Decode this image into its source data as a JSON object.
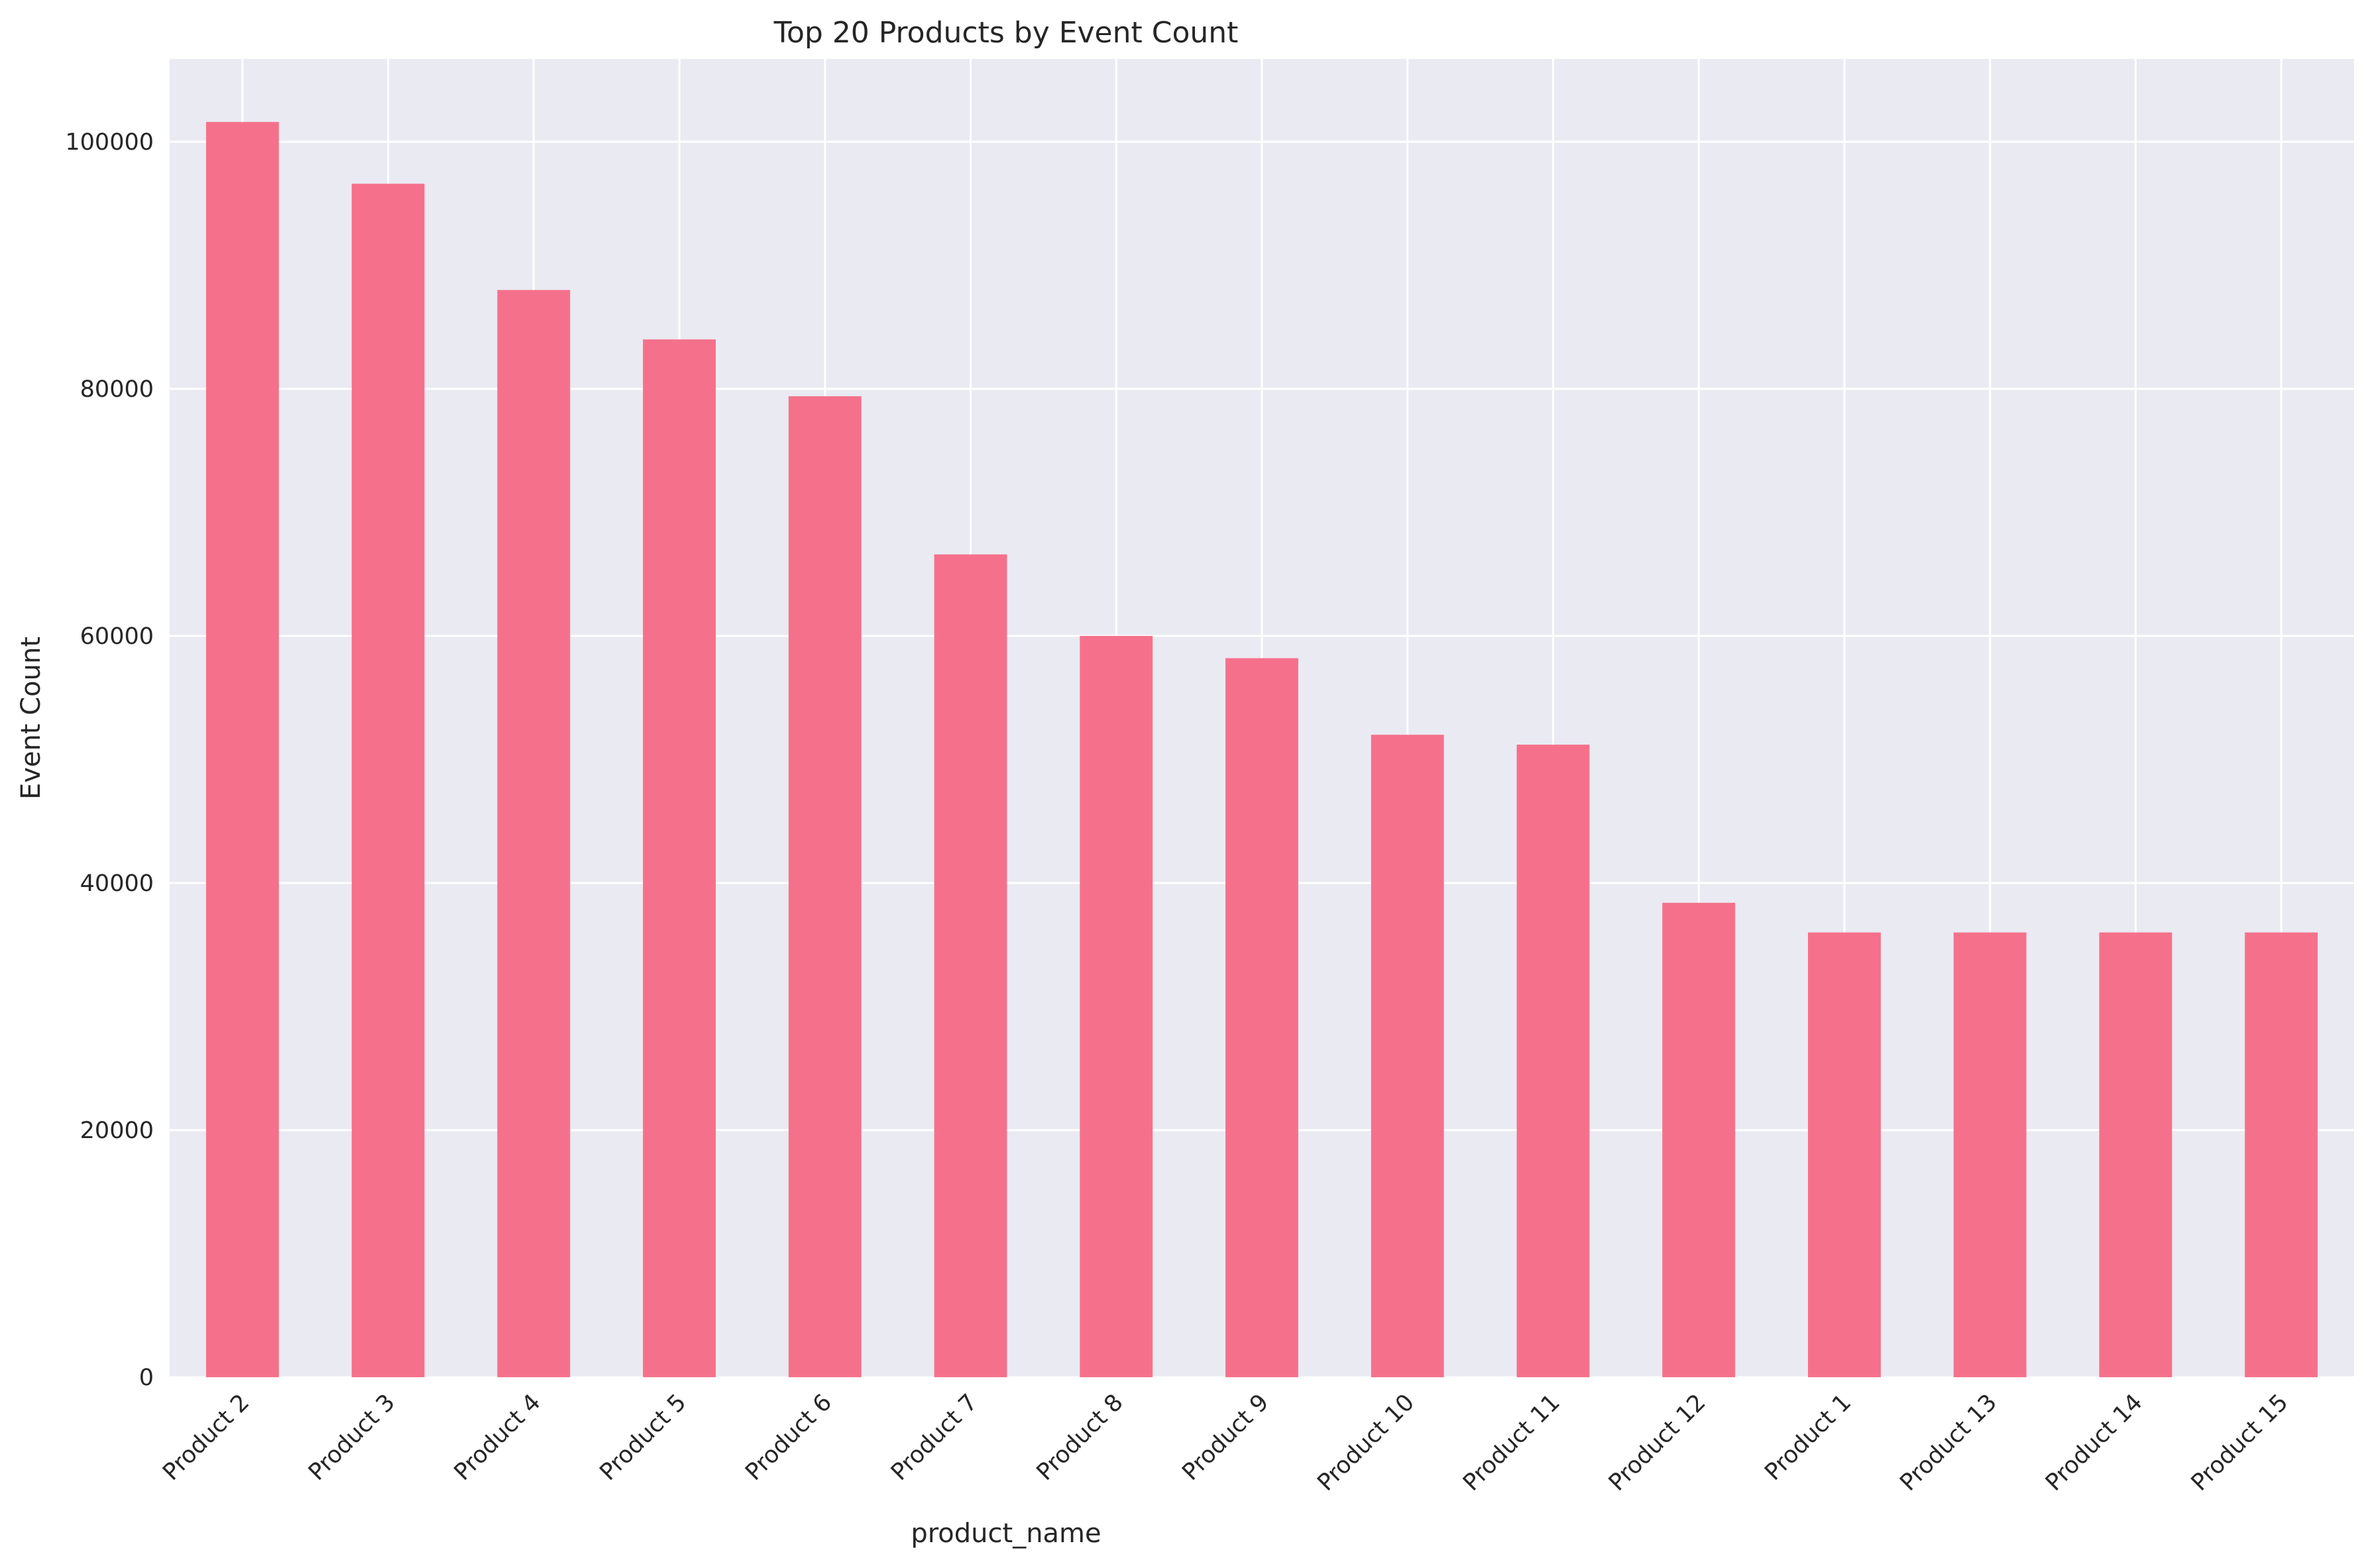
{
  "chart_data": {
    "type": "bar",
    "title": "Top 20 Products by Event Count",
    "xlabel": "product_name",
    "ylabel": "Event Count",
    "categories": [
      "Product 2",
      "Product 3",
      "Product 4",
      "Product 5",
      "Product 6",
      "Product 7",
      "Product 8",
      "Product 9",
      "Product 10",
      "Product 11",
      "Product 12",
      "Product 1",
      "Product 13",
      "Product 14",
      "Product 15"
    ],
    "values": [
      101600,
      96600,
      88000,
      84000,
      79400,
      66600,
      60000,
      58200,
      52000,
      51200,
      38400,
      36000,
      36000,
      36000,
      36000
    ],
    "ylim": [
      0,
      106700
    ],
    "yticks": [
      0,
      20000,
      40000,
      60000,
      80000,
      100000
    ],
    "ytick_labels": [
      "0",
      "20000",
      "40000",
      "60000",
      "80000",
      "100000"
    ],
    "grid": true,
    "colors": {
      "bar": "#f5718b",
      "plot_background": "#eaeaf2",
      "grid": "#ffffff",
      "text": "#262626"
    }
  }
}
